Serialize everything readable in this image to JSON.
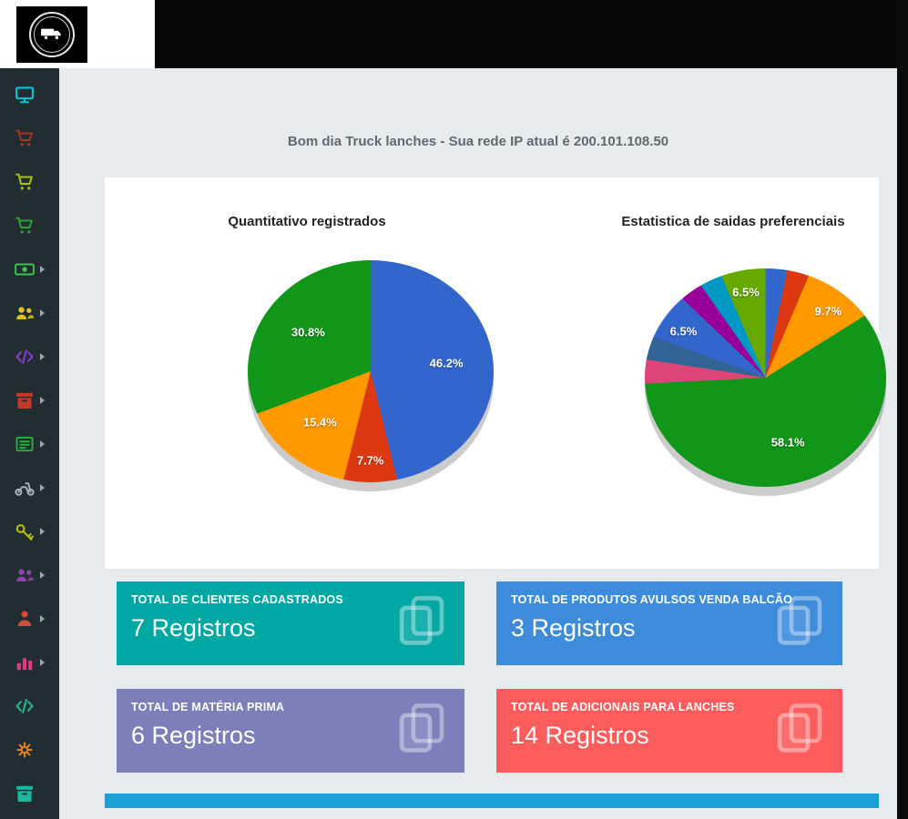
{
  "window": {
    "greeting": "Bom dia Truck lanches - Sua rede IP atual é 200.101.108.50"
  },
  "colors": {
    "header_bg": "#070707",
    "sidebar_bg": "#222d32",
    "content_bg": "#e7ebee",
    "panel_bg": "#ffffff"
  },
  "chart_data": [
    {
      "type": "pie",
      "title": "Quantitativo registrados",
      "legend": "none",
      "style": "pie3d",
      "slices": [
        {
          "name": "slice-1",
          "value": 46.2,
          "color": "#3366CC",
          "label": "46.2%"
        },
        {
          "name": "slice-2",
          "value": 7.7,
          "color": "#DC3912",
          "label": "7.7%"
        },
        {
          "name": "slice-3",
          "value": 15.4,
          "color": "#FF9900",
          "label": "15.4%"
        },
        {
          "name": "slice-4",
          "value": 30.8,
          "color": "#109618",
          "label": "30.8%"
        }
      ]
    },
    {
      "type": "pie",
      "title": "Estatistica de saidas preferenciais",
      "legend": "none",
      "style": "pie3d",
      "slices": [
        {
          "name": "slice-1",
          "value": 3.2,
          "color": "#3366CC",
          "label": ""
        },
        {
          "name": "slice-2",
          "value": 3.2,
          "color": "#DC3912",
          "label": ""
        },
        {
          "name": "slice-3",
          "value": 9.7,
          "color": "#FF9900",
          "label": "9.7%"
        },
        {
          "name": "slice-4",
          "value": 58.1,
          "color": "#109618",
          "label": "58.1%"
        },
        {
          "name": "slice-5",
          "value": 3.2,
          "color": "#DD4477",
          "label": ""
        },
        {
          "name": "slice-6",
          "value": 3.2,
          "color": "#316395",
          "label": ""
        },
        {
          "name": "slice-7",
          "value": 6.5,
          "color": "#3366CC",
          "label": "6.5%"
        },
        {
          "name": "slice-8",
          "value": 3.2,
          "color": "#990099",
          "label": ""
        },
        {
          "name": "slice-9",
          "value": 3.2,
          "color": "#0099C6",
          "label": ""
        },
        {
          "name": "slice-10",
          "value": 6.5,
          "color": "#66AA00",
          "label": "6.5%"
        }
      ]
    }
  ],
  "info_boxes": [
    {
      "label": "TOTAL DE CLIENTES CADASTRADOS",
      "value": "7 Registros",
      "color": "#00a7a3"
    },
    {
      "label": "TOTAL DE PRODUTOS AVULSOS VENDA BALCÃO",
      "value": "3 Registros",
      "color": "#3d8cdb"
    },
    {
      "label": "TOTAL DE MATÉRIA PRIMA",
      "value": "6 Registros",
      "color": "#7b80bb"
    },
    {
      "label": "TOTAL DE ADICIONAIS PARA LANCHES",
      "value": "14 Registros",
      "color": "#fc5c5c"
    }
  ],
  "partial_box": {
    "color": "#18a0d6"
  },
  "sidebar": {
    "items": [
      {
        "icon": "monitor",
        "name": "dashboard",
        "color": "#00c6d7",
        "caret": false
      },
      {
        "icon": "cart",
        "name": "cart-maroon",
        "color": "#a93226",
        "caret": false
      },
      {
        "icon": "cart",
        "name": "cart-lime",
        "color": "#a8c00f",
        "caret": false
      },
      {
        "icon": "cart",
        "name": "cart-green",
        "color": "#2e9e36",
        "caret": false
      },
      {
        "icon": "money",
        "name": "money",
        "color": "#39c449",
        "caret": true
      },
      {
        "icon": "users",
        "name": "users-yellow",
        "color": "#e7c41c",
        "caret": true
      },
      {
        "icon": "code",
        "name": "code-purple",
        "color": "#7d3fbf",
        "caret": true
      },
      {
        "icon": "box",
        "name": "box-red",
        "color": "#c0392b",
        "caret": true
      },
      {
        "icon": "list",
        "name": "list-green",
        "color": "#2fae3f",
        "caret": true
      },
      {
        "icon": "motorcycle",
        "name": "motorcycle",
        "color": "#aab4b8",
        "caret": true
      },
      {
        "icon": "key",
        "name": "key",
        "color": "#b3c212",
        "caret": true
      },
      {
        "icon": "users",
        "name": "users-purple",
        "color": "#8e44ad",
        "caret": true
      },
      {
        "icon": "person",
        "name": "person-red",
        "color": "#d24b3f",
        "caret": true
      },
      {
        "icon": "chart",
        "name": "chart-pink",
        "color": "#e23a7e",
        "caret": true
      },
      {
        "icon": "code",
        "name": "code-green",
        "color": "#20b08a",
        "caret": false
      },
      {
        "icon": "gears",
        "name": "gears-orange",
        "color": "#e67e22",
        "caret": false
      },
      {
        "icon": "box",
        "name": "box-teal",
        "color": "#1bb7a0",
        "caret": false
      }
    ]
  }
}
